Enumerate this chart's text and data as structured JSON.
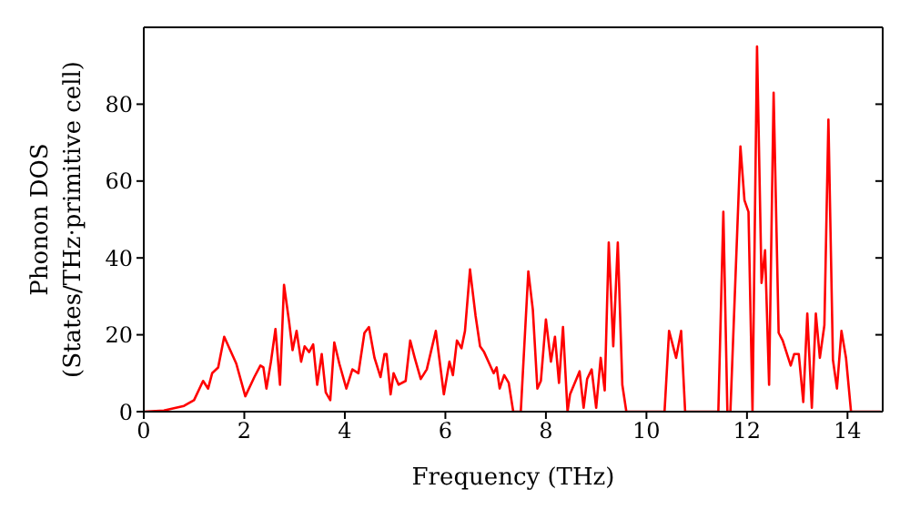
{
  "chart_data": {
    "type": "line",
    "xlabel": "Frequency (THz)",
    "ylabel": "Phonon DOS\n(States/THz·primitive cell)",
    "xlim": [
      0,
      14.7
    ],
    "xticks": [
      0,
      2,
      4,
      6,
      8,
      10,
      12,
      14
    ],
    "ylim": [
      0,
      100
    ],
    "yticks": [
      0,
      20,
      40,
      60,
      80
    ],
    "marker": "none",
    "line_style": "solid",
    "series": [
      {
        "color": "#ff0000",
        "x": [
          0,
          0.4,
          0.8,
          1.0,
          1.18,
          1.28,
          1.36,
          1.48,
          1.6,
          1.72,
          1.84,
          2.02,
          2.2,
          2.32,
          2.38,
          2.44,
          2.53,
          2.62,
          2.71,
          2.79,
          2.89,
          2.96,
          3.04,
          3.13,
          3.2,
          3.29,
          3.37,
          3.45,
          3.54,
          3.62,
          3.71,
          3.79,
          3.89,
          4.03,
          4.15,
          4.27,
          4.39,
          4.48,
          4.59,
          4.71,
          4.79,
          4.83,
          4.91,
          4.97,
          5.07,
          5.21,
          5.3,
          5.39,
          5.51,
          5.63,
          5.81,
          5.97,
          6.08,
          6.15,
          6.23,
          6.32,
          6.39,
          6.49,
          6.6,
          6.69,
          6.77,
          6.96,
          7.02,
          7.08,
          7.17,
          7.26,
          7.35,
          7.5,
          7.65,
          7.74,
          7.83,
          7.9,
          8.0,
          8.1,
          8.18,
          8.26,
          8.34,
          8.43,
          8.48,
          8.67,
          8.75,
          8.82,
          8.91,
          9.0,
          9.09,
          9.17,
          9.25,
          9.34,
          9.43,
          9.52,
          9.6,
          10.36,
          10.45,
          10.59,
          10.69,
          10.77,
          11.43,
          11.53,
          11.61,
          11.67,
          11.87,
          11.95,
          12.03,
          12.11,
          12.2,
          12.29,
          12.36,
          12.44,
          12.53,
          12.63,
          12.71,
          12.87,
          12.94,
          13.03,
          13.12,
          13.2,
          13.29,
          13.37,
          13.45,
          13.54,
          13.62,
          13.71,
          13.79,
          13.88,
          13.97,
          14.07,
          14.66
        ],
        "values": [
          0,
          0.3,
          1.5,
          3,
          8,
          6,
          10,
          11.5,
          19.5,
          16,
          12.5,
          4,
          9,
          12,
          11.5,
          6,
          13,
          21.5,
          7,
          33,
          23.5,
          16,
          21,
          13,
          17,
          15.5,
          17.5,
          7,
          15,
          5,
          3,
          18,
          12.5,
          6,
          11,
          10,
          20.5,
          22,
          14,
          9,
          15,
          15,
          4.5,
          10,
          7,
          8,
          18.5,
          14,
          8.5,
          11,
          21,
          4.5,
          13,
          9.5,
          18.5,
          16.5,
          21,
          37,
          25,
          17,
          15.5,
          10,
          11.5,
          6,
          9.5,
          7.5,
          0,
          0,
          36.5,
          26.5,
          6,
          8,
          24,
          13,
          19.5,
          7.5,
          22,
          0,
          4.5,
          10.5,
          1,
          8.5,
          11,
          1,
          14,
          5.5,
          44,
          17,
          44,
          7,
          0,
          0,
          21,
          14,
          21,
          0,
          0,
          52,
          0,
          0,
          69,
          55,
          52,
          0,
          95,
          33.5,
          42,
          7,
          83,
          20.5,
          18.5,
          12,
          15,
          15,
          2.5,
          25.5,
          1,
          25.5,
          14,
          22.5,
          76,
          13.5,
          6,
          21,
          14,
          0,
          0
        ]
      }
    ]
  }
}
